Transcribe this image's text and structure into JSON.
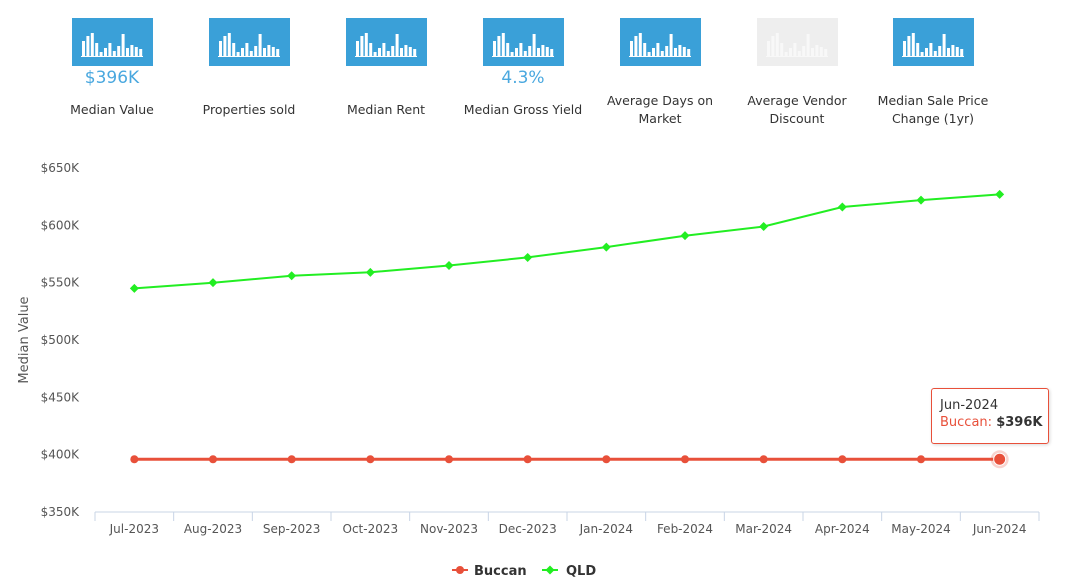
{
  "stat_tiles": [
    {
      "label": "Median Value",
      "value": "$396K",
      "enabled": true
    },
    {
      "label": "Properties sold",
      "value": "",
      "enabled": true
    },
    {
      "label": "Median Rent",
      "value": "",
      "enabled": true
    },
    {
      "label": "Median Gross Yield",
      "value": "4.3%",
      "enabled": true
    },
    {
      "label": "Average Days on Market",
      "value": "",
      "enabled": true
    },
    {
      "label": "Average Vendor Discount",
      "value": "",
      "enabled": false
    },
    {
      "label": "Median Sale Price Change (1yr)",
      "value": "",
      "enabled": true
    }
  ],
  "colors": {
    "tile_active": "#3aa0d8",
    "tile_disabled": "#eeeeee",
    "value_text": "#4aa8df",
    "buccan": "#e8503a",
    "qld": "#22ee22",
    "axis": "#c8d4e6",
    "axis_text": "#555555"
  },
  "chart_data": {
    "type": "line",
    "ylabel": "Median Value",
    "xlabel": "",
    "ylim": [
      350000,
      650000
    ],
    "yticks": [
      350000,
      400000,
      450000,
      500000,
      550000,
      600000,
      650000
    ],
    "ytick_labels": [
      "$350K",
      "$400K",
      "$450K",
      "$500K",
      "$550K",
      "$600K",
      "$650K"
    ],
    "grid": false,
    "legend": "bottom-center",
    "categories": [
      "Jul-2023",
      "Aug-2023",
      "Sep-2023",
      "Oct-2023",
      "Nov-2023",
      "Dec-2023",
      "Jan-2024",
      "Feb-2024",
      "Mar-2024",
      "Apr-2024",
      "May-2024",
      "Jun-2024"
    ],
    "series": [
      {
        "name": "Buccan",
        "color": "#e8503a",
        "marker": "circle",
        "values": [
          396000,
          396000,
          396000,
          396000,
          396000,
          396000,
          396000,
          396000,
          396000,
          396000,
          396000,
          396000
        ]
      },
      {
        "name": "QLD",
        "color": "#22ee22",
        "marker": "diamond",
        "values": [
          545000,
          550000,
          556000,
          559000,
          565000,
          572000,
          581000,
          591000,
          599000,
          616000,
          622000,
          627000
        ]
      }
    ]
  },
  "tooltip": {
    "date": "Jun-2024",
    "series": "Buccan",
    "value": "$396K"
  }
}
